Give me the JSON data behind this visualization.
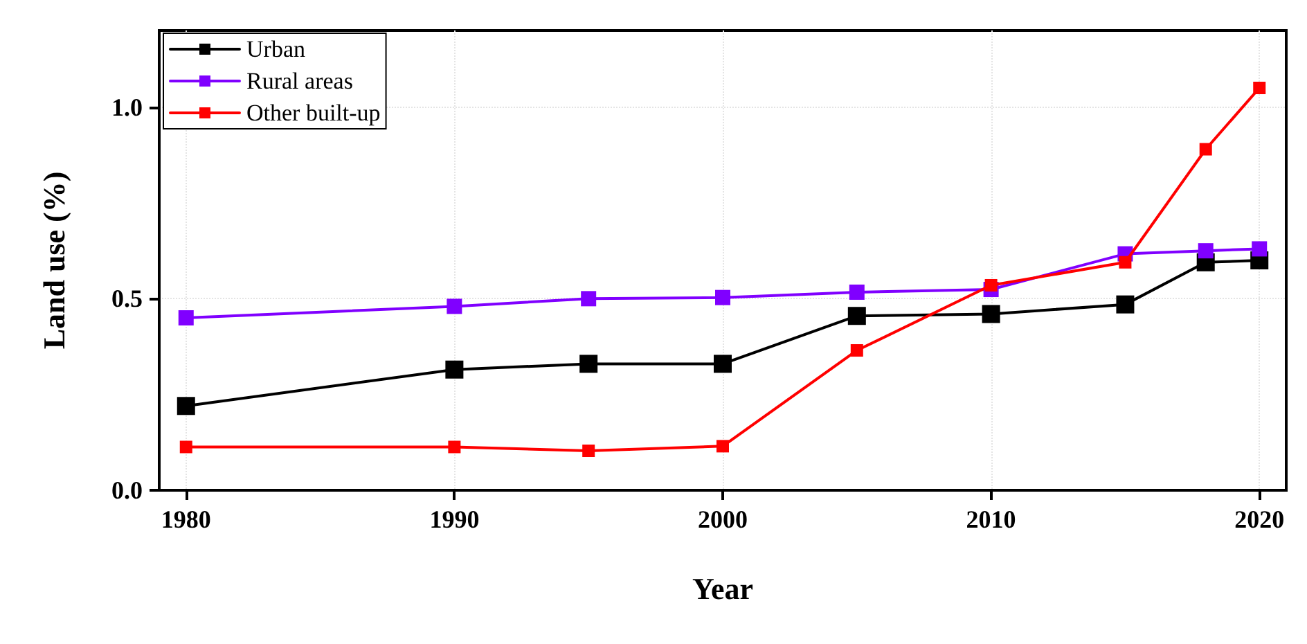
{
  "chart_data": {
    "type": "line",
    "xlabel": "Year",
    "ylabel": "Land use (%)",
    "x": [
      1980,
      1990,
      1995,
      2000,
      2005,
      2010,
      2015,
      2018,
      2020
    ],
    "series": [
      {
        "name": "Urban",
        "color": "#000000",
        "values": [
          0.22,
          0.315,
          0.33,
          0.33,
          0.455,
          0.46,
          0.485,
          0.595,
          0.6
        ]
      },
      {
        "name": "Rural areas",
        "color": "#8000ff",
        "values": [
          0.45,
          0.48,
          0.5,
          0.503,
          0.517,
          0.524,
          0.617,
          0.625,
          0.63
        ]
      },
      {
        "name": "Other built-up",
        "color": "#ff0000",
        "values": [
          0.113,
          0.113,
          0.103,
          0.115,
          0.365,
          0.535,
          0.595,
          0.89,
          1.05
        ]
      }
    ],
    "xlim": [
      1979,
      2021
    ],
    "xticks": [
      1980,
      1990,
      2000,
      2010,
      2020
    ],
    "ylim": [
      0,
      1.2
    ],
    "yticks": [
      {
        "value": 0,
        "label": "0.0"
      },
      {
        "value": 0.5,
        "label": "0.5"
      },
      {
        "value": 1,
        "label": "1.0"
      }
    ],
    "grid": true,
    "legend": "top left",
    "marker": "square",
    "line_style": "solid"
  }
}
